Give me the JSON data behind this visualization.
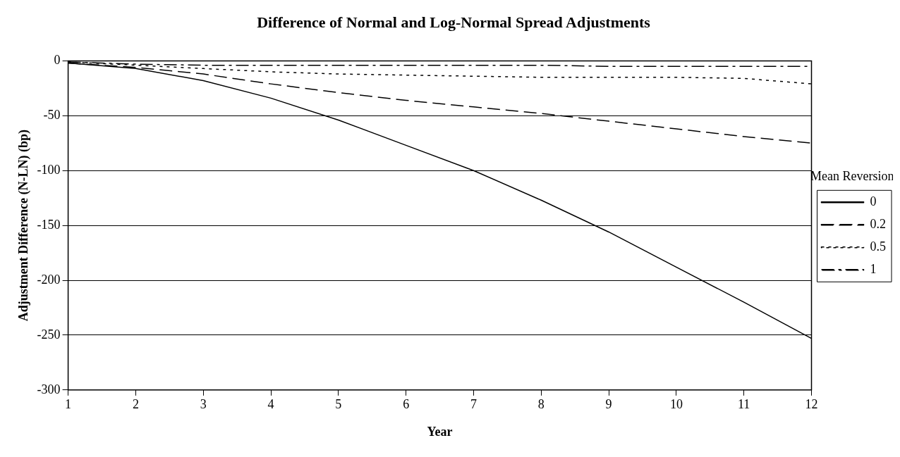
{
  "chart_data": {
    "type": "line",
    "title": "Difference of Normal and Log-Normal Spread Adjustments",
    "xlabel": "Year",
    "ylabel": "Adjustment Difference (N-LN) (bp)",
    "legend_title": "Mean Reversion",
    "x": [
      1,
      2,
      3,
      4,
      5,
      6,
      7,
      8,
      9,
      10,
      11,
      12
    ],
    "xlim": [
      1,
      12
    ],
    "xticks": [
      1,
      2,
      3,
      4,
      5,
      6,
      7,
      8,
      9,
      10,
      11,
      12
    ],
    "ylim": [
      -300,
      0
    ],
    "yticks": [
      -300,
      -250,
      -200,
      -150,
      -100,
      -50,
      0
    ],
    "grid": "y",
    "legend": "right",
    "marker": "none",
    "series": [
      {
        "name": "0",
        "color": "#000000",
        "line_style": "solid",
        "values": [
          -2,
          -7,
          -18,
          -34,
          -54,
          -77,
          -100,
          -127,
          -156,
          -188,
          -220,
          -253
        ]
      },
      {
        "name": "0.2",
        "color": "#000000",
        "line_style": "dashed",
        "values": [
          -2,
          -6,
          -12,
          -21,
          -29,
          -36,
          -42,
          -48,
          -55,
          -62,
          -69,
          -75
        ]
      },
      {
        "name": "0.5",
        "color": "#000000",
        "line_style": "dotted",
        "values": [
          -1,
          -4,
          -7,
          -10,
          -12,
          -13,
          -14,
          -15,
          -15,
          -15,
          -16,
          -21
        ]
      },
      {
        "name": "1",
        "color": "#000000",
        "line_style": "dashdot",
        "values": [
          -1,
          -3,
          -4,
          -4,
          -4,
          -4,
          -4,
          -4,
          -5,
          -5,
          -5,
          -5
        ]
      }
    ]
  }
}
